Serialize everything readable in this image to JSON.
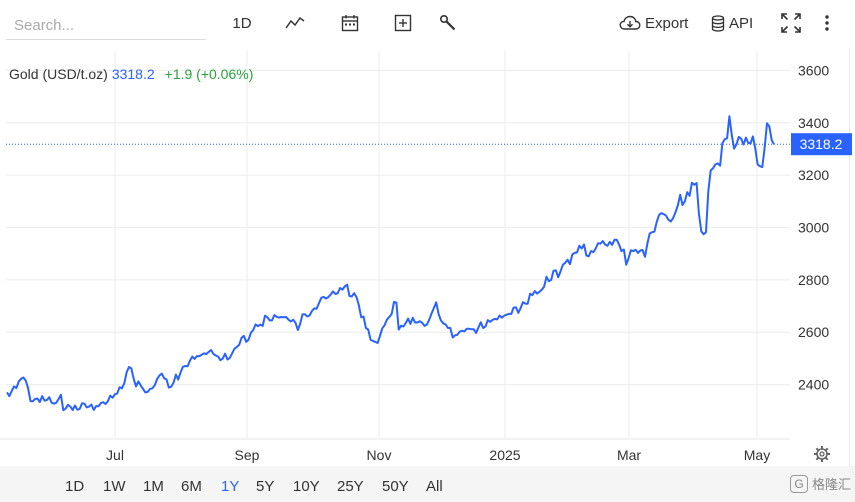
{
  "toolbar": {
    "search_placeholder": "Search...",
    "interval_label": "1D",
    "export_label": "Export",
    "api_label": "API"
  },
  "legend": {
    "name": "Gold (USD/t.oz)",
    "price": "3318.2",
    "change": "+1.9 (+0.06%)"
  },
  "price_tag": "3318.2",
  "ranges": [
    "1D",
    "1W",
    "1M",
    "6M",
    "1Y",
    "5Y",
    "10Y",
    "25Y",
    "50Y",
    "All"
  ],
  "active_range": "1Y",
  "watermark": "格隆汇",
  "colors": {
    "line": "#2962ff",
    "accent": "#2962ff",
    "positive": "#2aa33a"
  },
  "chart_data": {
    "type": "line",
    "series": [
      {
        "name": "Gold (USD/t.oz)",
        "values": [
          2370,
          2356,
          2375,
          2393,
          2387,
          2411,
          2422,
          2427,
          2415,
          2386,
          2337,
          2336,
          2345,
          2347,
          2333,
          2356,
          2339,
          2341,
          2352,
          2331,
          2327,
          2331,
          2345,
          2361,
          2302,
          2308,
          2323,
          2316,
          2303,
          2320,
          2304,
          2307,
          2329,
          2327,
          2313,
          2316,
          2324,
          2303,
          2318,
          2317,
          2329,
          2333,
          2326,
          2337,
          2358,
          2350,
          2363,
          2366,
          2390,
          2386,
          2405,
          2446,
          2467,
          2462,
          2422,
          2393,
          2412,
          2397,
          2384,
          2370,
          2372,
          2384,
          2386,
          2398,
          2421,
          2435,
          2442,
          2424,
          2420,
          2389,
          2392,
          2407,
          2438,
          2419,
          2447,
          2468,
          2471,
          2470,
          2492,
          2507,
          2498,
          2509,
          2509,
          2514,
          2519,
          2517,
          2525,
          2532,
          2517,
          2511,
          2507,
          2493,
          2500,
          2518,
          2496,
          2502,
          2520,
          2537,
          2544,
          2552,
          2579,
          2586,
          2563,
          2572,
          2598,
          2609,
          2630,
          2623,
          2629,
          2624,
          2663,
          2657,
          2645,
          2645,
          2666,
          2659,
          2656,
          2658,
          2657,
          2658,
          2648,
          2641,
          2648,
          2636,
          2608,
          2633,
          2668,
          2669,
          2660,
          2664,
          2681,
          2691,
          2690,
          2711,
          2732,
          2735,
          2729,
          2734,
          2744,
          2756,
          2746,
          2749,
          2769,
          2763,
          2775,
          2782,
          2738,
          2737,
          2749,
          2734,
          2704,
          2657,
          2660,
          2616,
          2610,
          2571,
          2567,
          2563,
          2559,
          2585,
          2615,
          2627,
          2649,
          2658,
          2670,
          2716,
          2713,
          2610,
          2625,
          2622,
          2635,
          2652,
          2632,
          2655,
          2637,
          2637,
          2642,
          2636,
          2624,
          2629,
          2648,
          2671,
          2693,
          2714,
          2670,
          2645,
          2634,
          2630,
          2616,
          2616,
          2580,
          2588,
          2590,
          2602,
          2606,
          2603,
          2613,
          2613,
          2611,
          2611,
          2597,
          2619,
          2638,
          2616,
          2622,
          2646,
          2640,
          2647,
          2651,
          2649,
          2664,
          2656,
          2663,
          2667,
          2670,
          2670,
          2694,
          2695,
          2674,
          2693,
          2715,
          2709,
          2709,
          2747,
          2742,
          2757,
          2748,
          2754,
          2763,
          2774,
          2812,
          2795,
          2800,
          2835,
          2836,
          2810,
          2833,
          2858,
          2865,
          2877,
          2860,
          2897,
          2903,
          2905,
          2930,
          2920,
          2935,
          2893,
          2890,
          2910,
          2906,
          2920,
          2940,
          2938,
          2948,
          2935,
          2930,
          2945,
          2934,
          2953,
          2953,
          2934,
          2910,
          2916,
          2858,
          2883,
          2913,
          2910,
          2915,
          2903,
          2912,
          2914,
          2888,
          2937,
          2977,
          2982,
          2984,
          3021,
          3048,
          3055,
          3051,
          3045,
          3030,
          3023,
          3036,
          3058,
          3084,
          3125,
          3086,
          3100,
          3135,
          3121,
          3171,
          3163,
          3170,
          3053,
          2985,
          2974,
          2982,
          3138,
          3218,
          3226,
          3241,
          3245,
          3236,
          3322,
          3337,
          3341,
          3425,
          3353,
          3301,
          3318,
          3346,
          3339,
          3317,
          3343,
          3323,
          3321,
          3348,
          3304,
          3241,
          3234,
          3231,
          3303,
          3398,
          3386,
          3334,
          3318
        ],
        "last": 3318.2
      }
    ],
    "x_ticks": [
      "Jul",
      "Sep",
      "Nov",
      "2025",
      "Mar",
      "May"
    ],
    "y_ticks": [
      2400,
      2600,
      2800,
      3000,
      3200,
      3400,
      3600
    ],
    "ylim": [
      2196,
      3678
    ],
    "grid": true,
    "legend": "top-left"
  }
}
